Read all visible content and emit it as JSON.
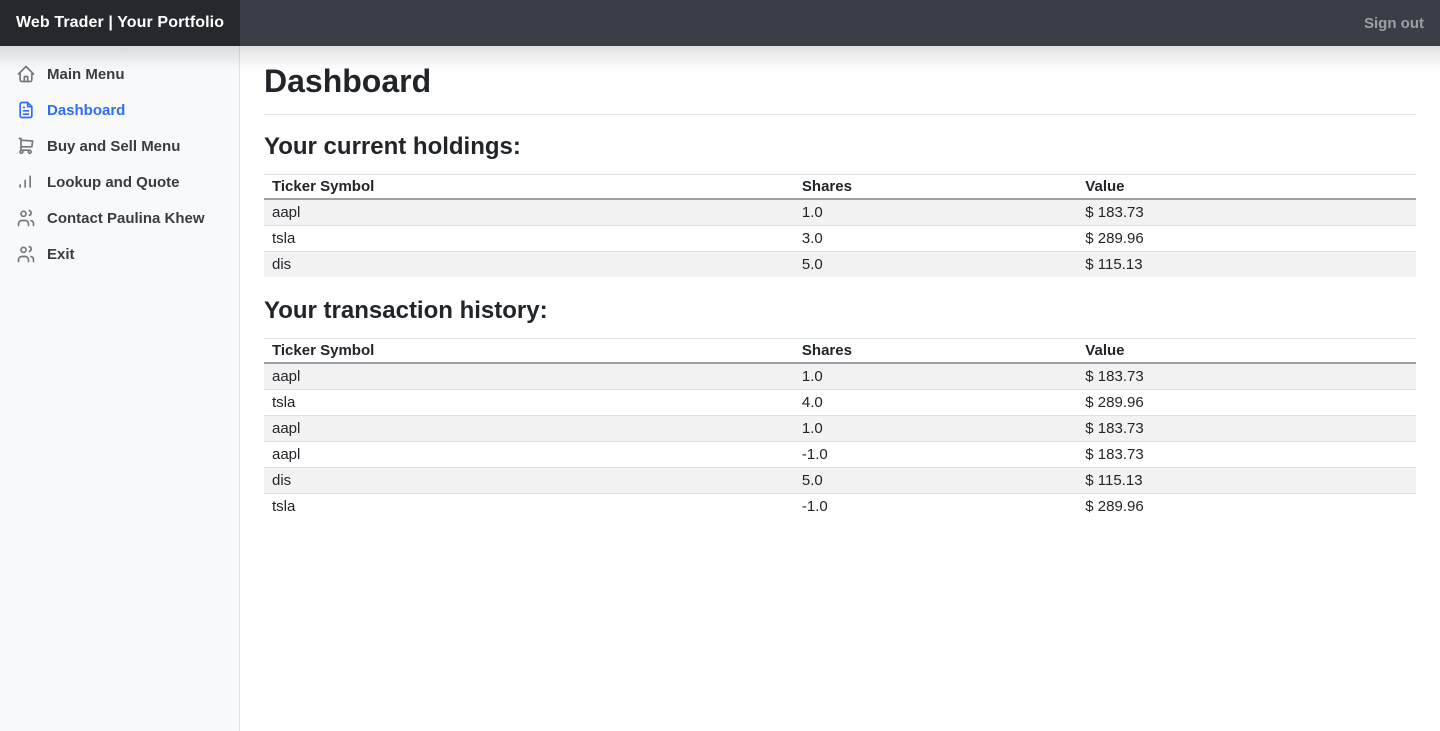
{
  "navbar": {
    "brand": "Web Trader | Your Portfolio",
    "sign_out": "Sign out"
  },
  "sidebar": {
    "items": [
      {
        "label": "Main Menu",
        "icon": "home-icon",
        "active": false
      },
      {
        "label": "Dashboard",
        "icon": "file-text-icon",
        "active": true
      },
      {
        "label": "Buy and Sell Menu",
        "icon": "shopping-cart-icon",
        "active": false
      },
      {
        "label": "Lookup and Quote",
        "icon": "bar-chart-icon",
        "active": false
      },
      {
        "label": "Contact Paulina Khew",
        "icon": "users-icon",
        "active": false
      },
      {
        "label": "Exit",
        "icon": "users-icon",
        "active": false
      }
    ]
  },
  "main": {
    "title": "Dashboard",
    "holdings": {
      "heading": "Your current holdings:",
      "columns": [
        "Ticker Symbol",
        "Shares",
        "Value"
      ],
      "rows": [
        [
          "aapl",
          "1.0",
          "$ 183.73"
        ],
        [
          "tsla",
          "3.0",
          "$ 289.96"
        ],
        [
          "dis",
          "5.0",
          "$ 115.13"
        ]
      ]
    },
    "transactions": {
      "heading": "Your transaction history:",
      "columns": [
        "Ticker Symbol",
        "Shares",
        "Value"
      ],
      "rows": [
        [
          "aapl",
          "1.0",
          "$ 183.73"
        ],
        [
          "tsla",
          "4.0",
          "$ 289.96"
        ],
        [
          "aapl",
          "1.0",
          "$ 183.73"
        ],
        [
          "aapl",
          "-1.0",
          "$ 183.73"
        ],
        [
          "dis",
          "5.0",
          "$ 115.13"
        ],
        [
          "tsla",
          "-1.0",
          "$ 289.96"
        ]
      ]
    }
  },
  "colors": {
    "accent": "#2f6ef4",
    "navbar_bg": "#3a3e46",
    "brand_bg": "#25282d",
    "sidebar_bg": "#f8f9fa",
    "stripe": "#f2f2f2",
    "border": "#dee2e6",
    "header_border": "#9ca1a7",
    "text": "#212529",
    "icon": "#74797f",
    "signout": "#9aa0a6"
  }
}
